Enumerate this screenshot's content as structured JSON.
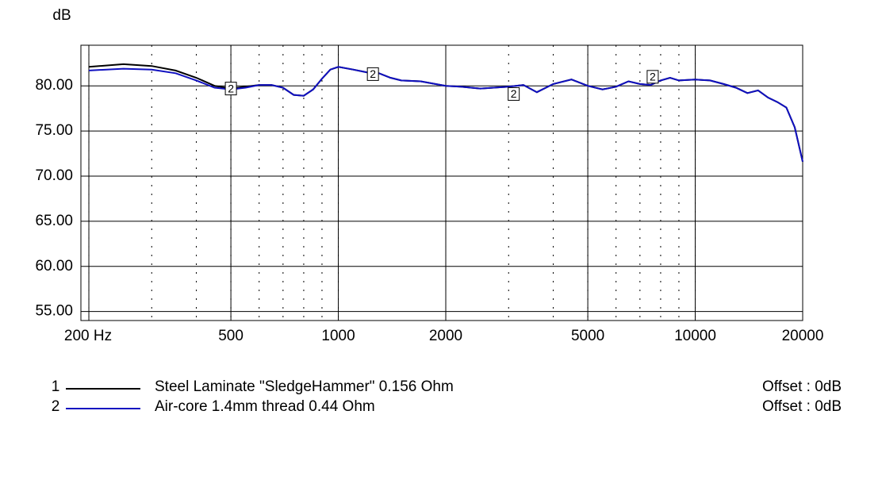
{
  "chart_data": {
    "type": "line",
    "y_label": "dB",
    "xscale": "log",
    "grid": true,
    "xlim": [
      190,
      20000
    ],
    "ylim": [
      54,
      84.5
    ],
    "xticks": [
      {
        "value": 200,
        "label": "200 Hz"
      },
      500,
      1000,
      2000,
      5000,
      10000,
      20000
    ],
    "yticks": [
      {
        "value": 80,
        "label": "80.00"
      },
      {
        "value": 75,
        "label": "75.00"
      },
      {
        "value": 70,
        "label": "70.00"
      },
      {
        "value": 65,
        "label": "65.00"
      },
      {
        "value": 60,
        "label": "60.00"
      },
      {
        "value": 55,
        "label": "55.00"
      }
    ],
    "x": [
      200,
      250,
      300,
      350,
      400,
      450,
      500,
      550,
      600,
      650,
      700,
      750,
      800,
      850,
      900,
      950,
      1000,
      1100,
      1200,
      1300,
      1400,
      1500,
      1700,
      2000,
      2200,
      2500,
      3000,
      3300,
      3600,
      4000,
      4500,
      5000,
      5500,
      6000,
      6500,
      7000,
      7500,
      8000,
      8500,
      9000,
      10000,
      11000,
      12000,
      13000,
      14000,
      15000,
      16000,
      17000,
      18000,
      19000,
      20000
    ],
    "series": [
      {
        "id": "1",
        "name": "Steel Laminate \"SledgeHammer\" 0.156 Ohm",
        "offset_label": "Offset : 0dB",
        "color": "#000000",
        "values": [
          82.1,
          82.4,
          82.2,
          81.7,
          80.9,
          80.0,
          79.7,
          79.9,
          80.1,
          80.1,
          79.8,
          79.0,
          78.9,
          79.6,
          80.8,
          81.8,
          82.1,
          81.8,
          81.5,
          81.4,
          80.9,
          80.6,
          80.5,
          80.0,
          79.9,
          79.7,
          79.9,
          80.1,
          79.3,
          80.2,
          80.7,
          80.0,
          79.6,
          79.9,
          80.5,
          80.2,
          80.1,
          80.6,
          80.9,
          80.6,
          80.7,
          80.6,
          80.2,
          79.8,
          79.2,
          79.5,
          78.7,
          78.2,
          77.6,
          75.4,
          71.6
        ]
      },
      {
        "id": "2",
        "name": "Air-core 1.4mm thread 0.44 Ohm",
        "offset_label": "Offset : 0dB",
        "color": "#1010c0",
        "values": [
          81.7,
          81.9,
          81.8,
          81.4,
          80.6,
          79.8,
          79.6,
          79.8,
          80.1,
          80.1,
          79.8,
          79.0,
          78.9,
          79.6,
          80.8,
          81.8,
          82.1,
          81.8,
          81.5,
          81.4,
          80.9,
          80.6,
          80.5,
          80.0,
          79.9,
          79.7,
          79.9,
          80.1,
          79.3,
          80.2,
          80.7,
          80.0,
          79.6,
          79.9,
          80.5,
          80.2,
          80.1,
          80.6,
          80.9,
          80.6,
          80.7,
          80.6,
          80.2,
          79.8,
          79.2,
          79.5,
          78.7,
          78.2,
          77.6,
          75.4,
          71.6
        ]
      }
    ],
    "markers": [
      {
        "x": 500,
        "y": 79.7,
        "label": "2"
      },
      {
        "x": 1250,
        "y": 81.3,
        "label": "2"
      },
      {
        "x": 3100,
        "y": 79.1,
        "label": "2"
      },
      {
        "x": 7600,
        "y": 81.0,
        "label": "2"
      }
    ]
  }
}
